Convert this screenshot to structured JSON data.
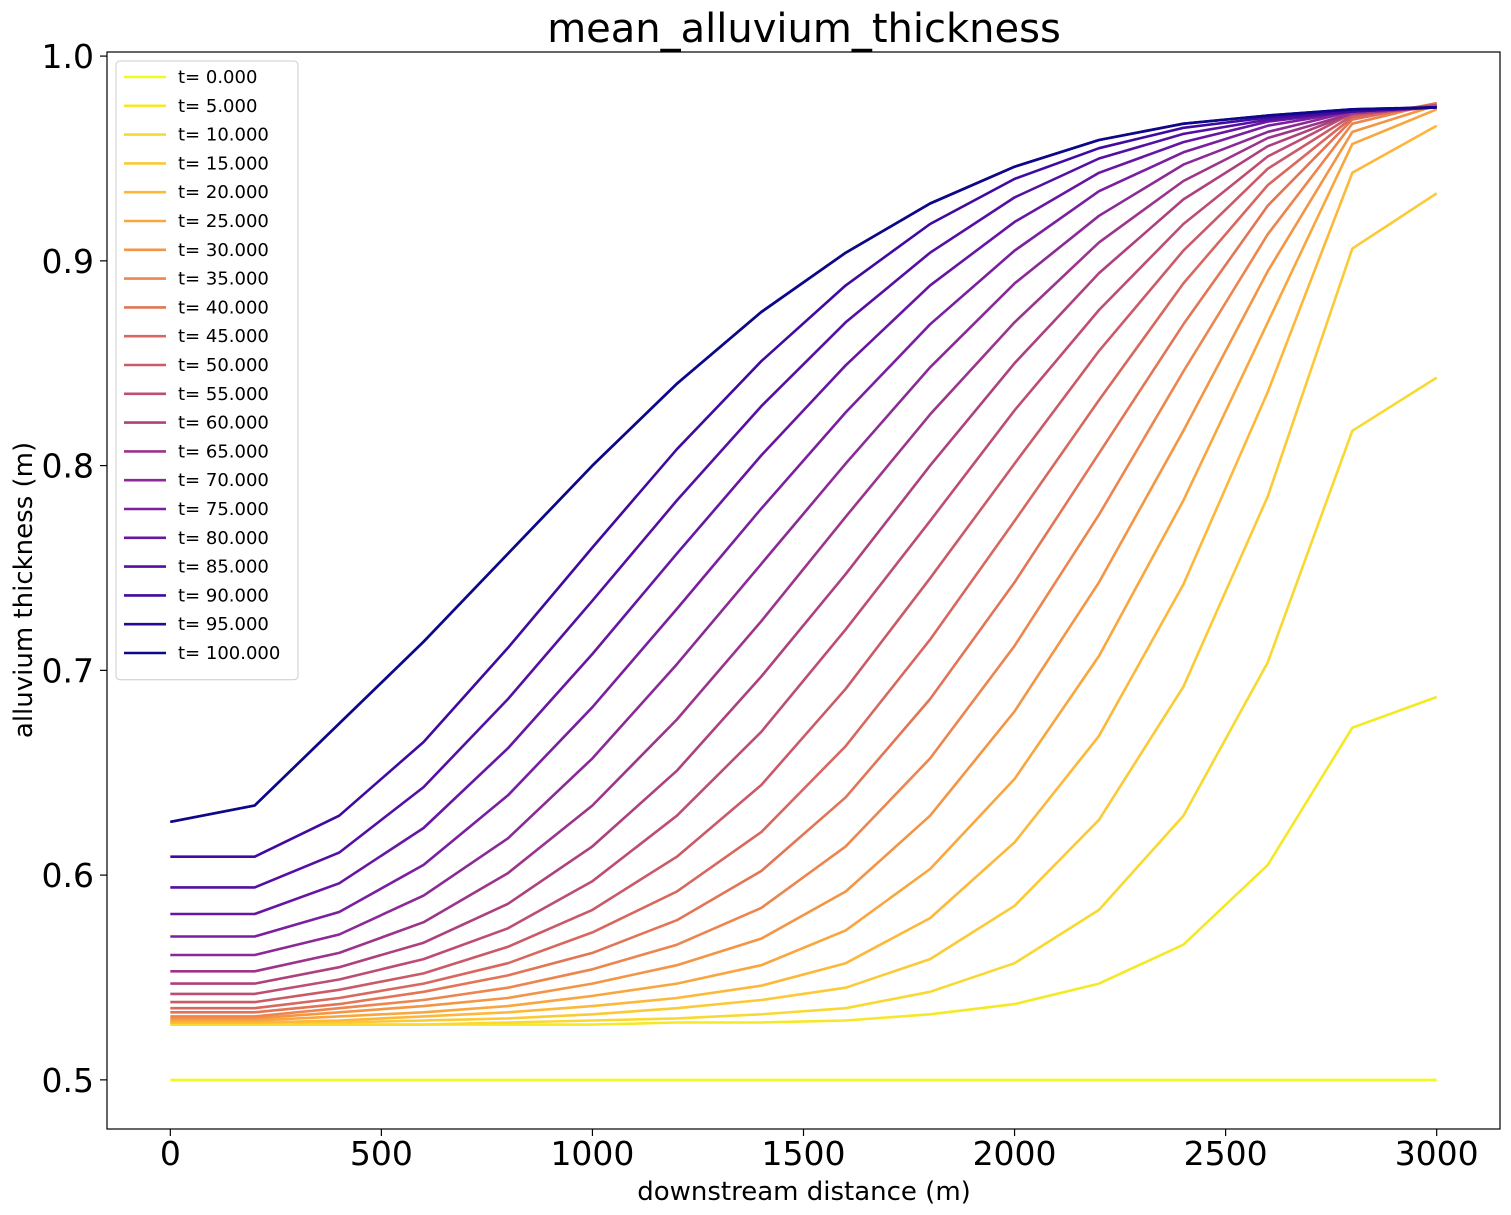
{
  "chart_data": {
    "type": "line",
    "title": "mean_alluvium_thickness",
    "xlabel": "downstream distance (m)",
    "ylabel": "alluvium thickness (m)",
    "xlim": [
      -150,
      3150
    ],
    "ylim": [
      0.476,
      1.002
    ],
    "xticks": [
      0,
      500,
      1000,
      1500,
      2000,
      2500,
      3000
    ],
    "xtick_labels": [
      "0",
      "500",
      "1000",
      "1500",
      "2000",
      "2500",
      "3000"
    ],
    "yticks": [
      0.5,
      0.6,
      0.7,
      0.8,
      0.9,
      1.0
    ],
    "ytick_labels": [
      "0.5",
      "0.6",
      "0.7",
      "0.8",
      "0.9",
      "1.0"
    ],
    "grid": false,
    "legend_position": "top-left",
    "colormap": "plasma (reversed: yellow at t=0, dark blue at t=100)",
    "x": [
      0,
      200,
      400,
      600,
      800,
      1000,
      1200,
      1400,
      1600,
      1800,
      2000,
      2200,
      2400,
      2600,
      2800,
      3000
    ],
    "series": [
      {
        "name": "t= 0.000",
        "color": "#f0f921",
        "values": [
          0.5,
          0.5,
          0.5,
          0.5,
          0.5,
          0.5,
          0.5,
          0.5,
          0.5,
          0.5,
          0.5,
          0.5,
          0.5,
          0.5,
          0.5,
          0.5
        ]
      },
      {
        "name": "t= 5.000",
        "color": "#f5e926",
        "values": [
          0.527,
          0.527,
          0.527,
          0.527,
          0.527,
          0.527,
          0.528,
          0.528,
          0.529,
          0.532,
          0.537,
          0.547,
          0.566,
          0.605,
          0.672,
          0.687
        ]
      },
      {
        "name": "t= 10.000",
        "color": "#f8d931",
        "values": [
          0.527,
          0.527,
          0.527,
          0.527,
          0.528,
          0.529,
          0.53,
          0.532,
          0.535,
          0.543,
          0.557,
          0.583,
          0.629,
          0.704,
          0.817,
          0.843
        ]
      },
      {
        "name": "t= 15.000",
        "color": "#fbca36",
        "values": [
          0.528,
          0.528,
          0.528,
          0.529,
          0.53,
          0.532,
          0.535,
          0.539,
          0.545,
          0.559,
          0.585,
          0.627,
          0.692,
          0.785,
          0.906,
          0.933
        ]
      },
      {
        "name": "t= 20.000",
        "color": "#fdb83a",
        "values": [
          0.528,
          0.528,
          0.529,
          0.531,
          0.533,
          0.536,
          0.54,
          0.546,
          0.557,
          0.579,
          0.616,
          0.668,
          0.742,
          0.836,
          0.943,
          0.966
        ]
      },
      {
        "name": "t= 25.000",
        "color": "#f9a63e",
        "values": [
          0.529,
          0.529,
          0.531,
          0.533,
          0.536,
          0.541,
          0.547,
          0.556,
          0.573,
          0.603,
          0.647,
          0.707,
          0.783,
          0.87,
          0.957,
          0.974
        ]
      },
      {
        "name": "t= 30.000",
        "color": "#f39544",
        "values": [
          0.53,
          0.53,
          0.533,
          0.536,
          0.54,
          0.547,
          0.556,
          0.569,
          0.592,
          0.629,
          0.68,
          0.743,
          0.817,
          0.895,
          0.963,
          0.976
        ]
      },
      {
        "name": "t= 35.000",
        "color": "#ec854e",
        "values": [
          0.531,
          0.531,
          0.535,
          0.539,
          0.545,
          0.554,
          0.566,
          0.584,
          0.614,
          0.657,
          0.712,
          0.776,
          0.846,
          0.913,
          0.967,
          0.977
        ]
      },
      {
        "name": "t= 40.000",
        "color": "#e27556",
        "values": [
          0.533,
          0.533,
          0.537,
          0.543,
          0.551,
          0.562,
          0.578,
          0.602,
          0.638,
          0.686,
          0.743,
          0.806,
          0.869,
          0.927,
          0.969,
          0.977
        ]
      },
      {
        "name": "t= 45.000",
        "color": "#d7675f",
        "values": [
          0.535,
          0.535,
          0.54,
          0.547,
          0.557,
          0.572,
          0.592,
          0.621,
          0.663,
          0.715,
          0.773,
          0.832,
          0.889,
          0.937,
          0.97,
          0.976
        ]
      },
      {
        "name": "t= 50.000",
        "color": "#ca5a68",
        "values": [
          0.538,
          0.538,
          0.544,
          0.552,
          0.565,
          0.583,
          0.609,
          0.644,
          0.691,
          0.745,
          0.801,
          0.856,
          0.905,
          0.945,
          0.971,
          0.976
        ]
      },
      {
        "name": "t= 55.000",
        "color": "#bd4d72",
        "values": [
          0.542,
          0.542,
          0.549,
          0.559,
          0.574,
          0.597,
          0.629,
          0.67,
          0.72,
          0.773,
          0.827,
          0.876,
          0.918,
          0.951,
          0.972,
          0.976
        ]
      },
      {
        "name": "t= 60.000",
        "color": "#ad417e",
        "values": [
          0.547,
          0.547,
          0.555,
          0.567,
          0.586,
          0.614,
          0.651,
          0.697,
          0.747,
          0.8,
          0.85,
          0.894,
          0.93,
          0.956,
          0.972,
          0.975
        ]
      },
      {
        "name": "t= 65.000",
        "color": "#9c358a",
        "values": [
          0.553,
          0.553,
          0.562,
          0.577,
          0.601,
          0.634,
          0.676,
          0.724,
          0.775,
          0.825,
          0.87,
          0.909,
          0.939,
          0.96,
          0.972,
          0.975
        ]
      },
      {
        "name": "t= 70.000",
        "color": "#8b2a97",
        "values": [
          0.561,
          0.561,
          0.571,
          0.59,
          0.618,
          0.657,
          0.703,
          0.752,
          0.801,
          0.848,
          0.889,
          0.922,
          0.947,
          0.963,
          0.973,
          0.975
        ]
      },
      {
        "name": "t= 75.000",
        "color": "#791fa0",
        "values": [
          0.57,
          0.57,
          0.582,
          0.605,
          0.639,
          0.682,
          0.73,
          0.779,
          0.826,
          0.869,
          0.905,
          0.934,
          0.953,
          0.966,
          0.973,
          0.975
        ]
      },
      {
        "name": "t= 80.000",
        "color": "#6716a3",
        "values": [
          0.581,
          0.581,
          0.596,
          0.623,
          0.662,
          0.708,
          0.757,
          0.805,
          0.849,
          0.888,
          0.919,
          0.943,
          0.958,
          0.968,
          0.973,
          0.975
        ]
      },
      {
        "name": "t= 85.000",
        "color": "#540fa3",
        "values": [
          0.594,
          0.594,
          0.611,
          0.643,
          0.686,
          0.734,
          0.783,
          0.829,
          0.87,
          0.904,
          0.931,
          0.95,
          0.962,
          0.969,
          0.973,
          0.975
        ]
      },
      {
        "name": "t= 90.000",
        "color": "#400aa0",
        "values": [
          0.609,
          0.609,
          0.629,
          0.665,
          0.711,
          0.76,
          0.808,
          0.851,
          0.888,
          0.918,
          0.94,
          0.955,
          0.965,
          0.97,
          0.973,
          0.975
        ]
      },
      {
        "name": "t= 95.000",
        "color": "#2a0897",
        "values": [
          0.626,
          0.634,
          0.674,
          0.714,
          0.757,
          0.8,
          0.84,
          0.875,
          0.904,
          0.928,
          0.946,
          0.959,
          0.967,
          0.971,
          0.974,
          0.975
        ]
      },
      {
        "name": "t= 100.000",
        "color": "#0d0887",
        "values": [
          0.626,
          0.634,
          0.674,
          0.714,
          0.757,
          0.8,
          0.84,
          0.875,
          0.904,
          0.928,
          0.946,
          0.959,
          0.967,
          0.971,
          0.974,
          0.975
        ]
      }
    ]
  }
}
